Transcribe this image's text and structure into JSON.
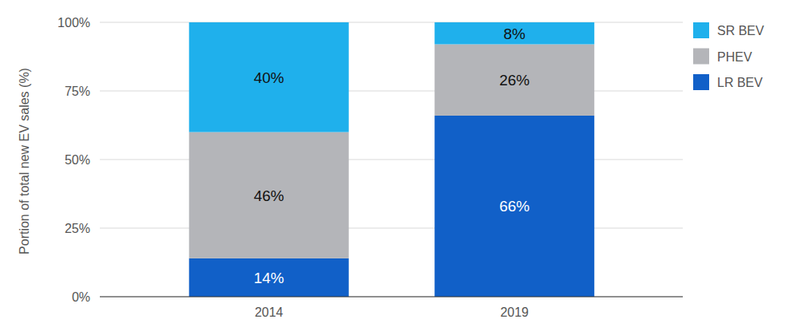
{
  "chart_data": {
    "type": "bar",
    "stacked": true,
    "data_labels": true,
    "grid": true,
    "legend": "right",
    "ylabel": "Portion of total new EV sales (%)",
    "categories": [
      "2014",
      "2019"
    ],
    "ylim": [
      0,
      100
    ],
    "yticks": [
      {
        "value": 0,
        "label": "0%"
      },
      {
        "value": 25,
        "label": "25%"
      },
      {
        "value": 50,
        "label": "50%"
      },
      {
        "value": 75,
        "label": "75%"
      },
      {
        "value": 100,
        "label": "100%"
      }
    ],
    "series": [
      {
        "name": "LR BEV",
        "color": "#1160c8",
        "values": [
          14,
          66
        ],
        "value_labels": [
          "14%",
          "66%"
        ]
      },
      {
        "name": "PHEV",
        "color": "#b4b5b9",
        "values": [
          46,
          26
        ],
        "value_labels": [
          "46%",
          "26%"
        ]
      },
      {
        "name": "SR BEV",
        "color": "#1fb0ec",
        "values": [
          40,
          8
        ],
        "value_labels": [
          "40%",
          "8%"
        ]
      }
    ]
  }
}
